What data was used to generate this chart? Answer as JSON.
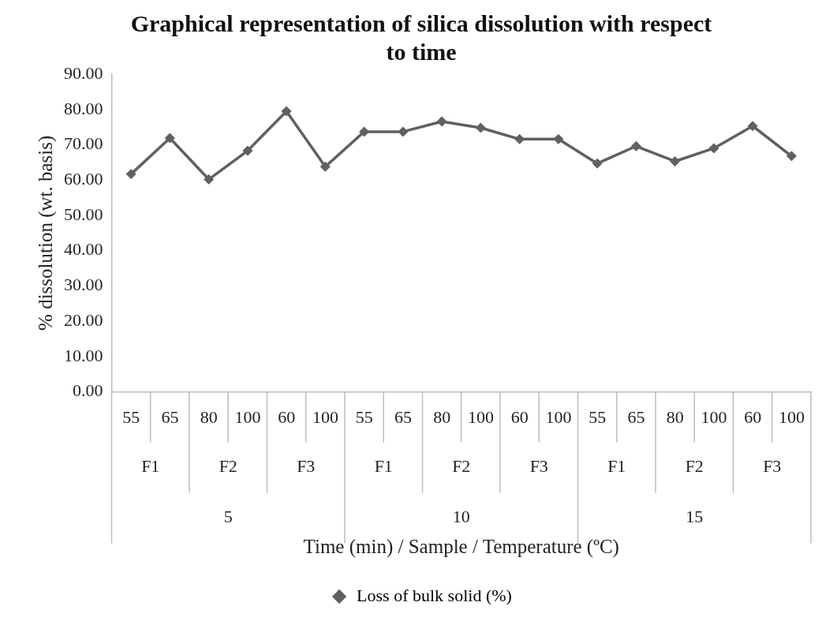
{
  "chart_data": {
    "type": "line",
    "title": "Graphical representation of silica dissolution with respect to time",
    "ylabel": "% dissolution (wt. basis)",
    "categories": [
      "55",
      "65",
      "80",
      "100",
      "60",
      "100",
      "55",
      "65",
      "80",
      "100",
      "60",
      "100",
      "55",
      "65",
      "80",
      "100",
      "60",
      "100"
    ],
    "series": [
      {
        "name": "Loss of bulk solid (%)",
        "color": "#606060",
        "values": [
          61.7,
          71.9,
          60.2,
          68.3,
          79.5,
          63.8,
          73.7,
          73.7,
          76.6,
          74.8,
          71.6,
          71.6,
          64.7,
          69.6,
          65.3,
          69.0,
          75.3,
          66.8
        ]
      }
    ],
    "ylim": [
      0,
      90
    ],
    "yticks": [
      {
        "value": 0,
        "label": "0.00"
      },
      {
        "value": 10,
        "label": "10.00"
      },
      {
        "value": 20,
        "label": "20.00"
      },
      {
        "value": 30,
        "label": "30.00"
      },
      {
        "value": 40,
        "label": "40.00"
      },
      {
        "value": 50,
        "label": "50.00"
      },
      {
        "value": 60,
        "label": "60.00"
      },
      {
        "value": 70,
        "label": "70.00"
      },
      {
        "value": 80,
        "label": "80.00"
      },
      {
        "value": 90,
        "label": "90.00"
      }
    ],
    "annotations": [
      "F1",
      "F2",
      "F3",
      "F1",
      "F2",
      "F3",
      "F1",
      "F2",
      "F3",
      "5",
      "10",
      "15",
      "Time (min) / Sample / Temperature (ºC)"
    ],
    "grid": false,
    "legend": "bottom",
    "marker": "diamond",
    "line_style": "solid"
  }
}
